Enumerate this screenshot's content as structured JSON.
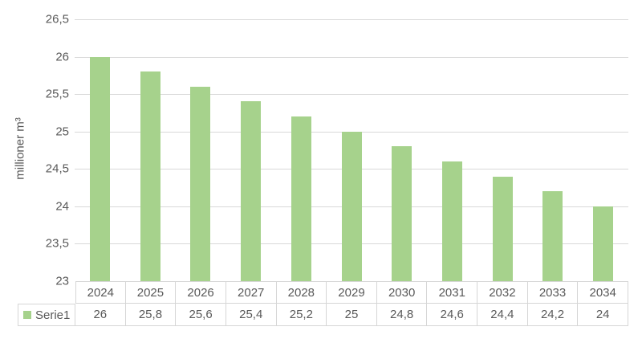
{
  "chart_data": {
    "type": "bar",
    "title": "",
    "xlabel": "",
    "ylabel": "millioner m³",
    "categories": [
      "2024",
      "2025",
      "2026",
      "2027",
      "2028",
      "2029",
      "2030",
      "2031",
      "2032",
      "2033",
      "2034"
    ],
    "series": [
      {
        "name": "Serie1",
        "values": [
          26,
          25.8,
          25.6,
          25.4,
          25.2,
          25,
          24.8,
          24.6,
          24.4,
          24.2,
          24
        ],
        "values_display": [
          "26",
          "25,8",
          "25,6",
          "25,4",
          "25,2",
          "25",
          "24,8",
          "24,6",
          "24,4",
          "24,2",
          "24"
        ]
      }
    ],
    "ylim": [
      23,
      26.5
    ],
    "yticks": [
      {
        "value": 26.5,
        "label": "26,5"
      },
      {
        "value": 26,
        "label": "26"
      },
      {
        "value": 25.5,
        "label": "25,5"
      },
      {
        "value": 25,
        "label": "25"
      },
      {
        "value": 24.5,
        "label": "24,5"
      },
      {
        "value": 24,
        "label": "24"
      },
      {
        "value": 23.5,
        "label": "23,5"
      },
      {
        "value": 23,
        "label": "23"
      }
    ],
    "grid": true,
    "legend_position": "table-left",
    "colors": {
      "bar": "#a6d28c",
      "grid": "#d9d9d9",
      "text": "#595959",
      "table_border": "#d6d6d6"
    }
  }
}
